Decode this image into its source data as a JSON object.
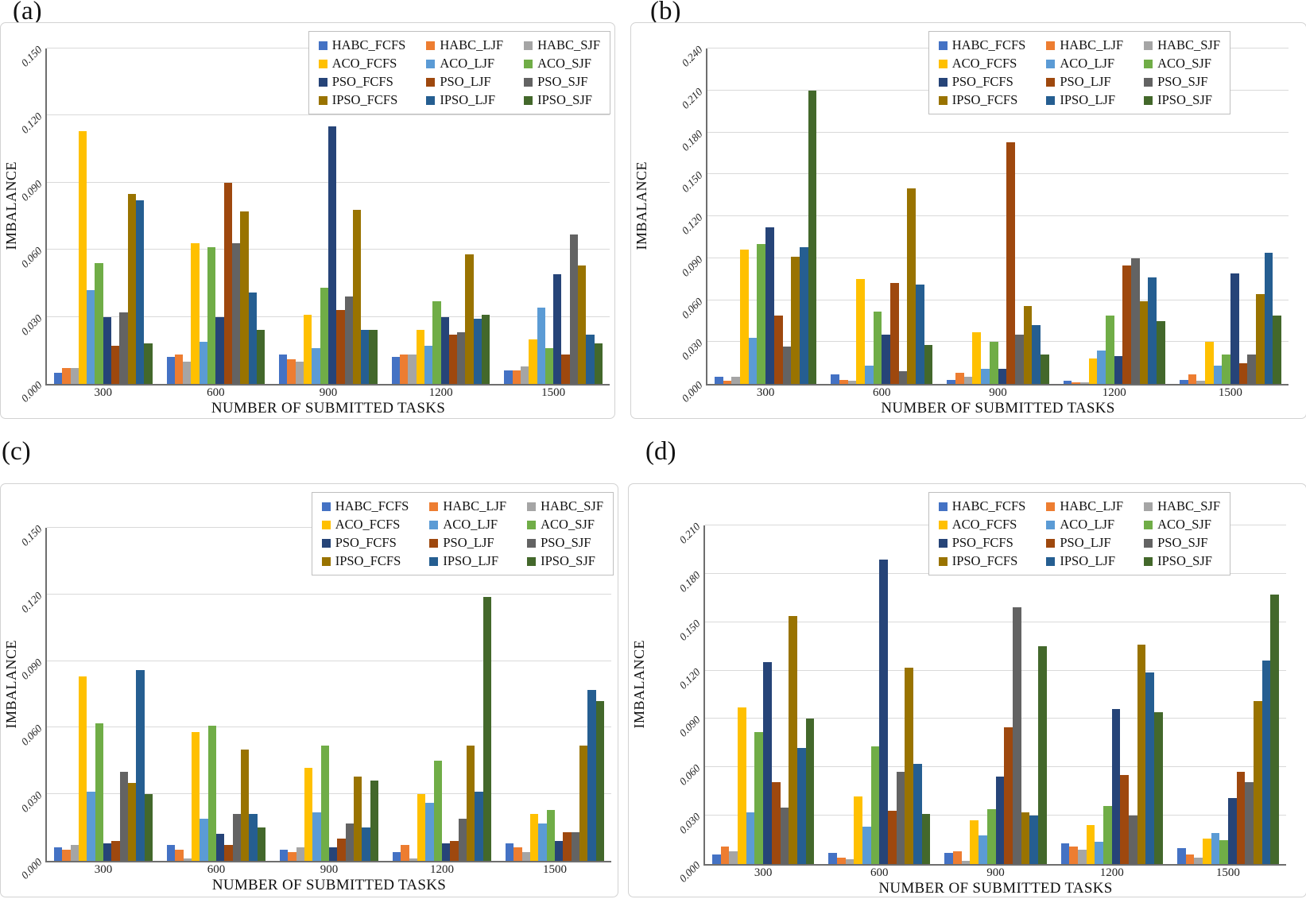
{
  "figure": {
    "xlabel": "NUMBER OF SUBMITTED TASKS",
    "ylabel": "IMBALANCE",
    "grid_color": "#d9d9d9",
    "axis_color": "#6e6e6e"
  },
  "chart_data": [
    {
      "type": "bar",
      "panel_label": "(a)",
      "xlabel": "NUMBER OF SUBMITTED TASKS",
      "ylabel": "IMBALANCE",
      "categories": [
        "300",
        "600",
        "900",
        "1200",
        "1500"
      ],
      "ylim": [
        0,
        0.15
      ],
      "ystep": 0.03,
      "grid": true,
      "legend_position": "top-right",
      "series": [
        {
          "name": "HABC_FCFS",
          "color": "#4472C4",
          "values": [
            0.005,
            0.012,
            0.013,
            0.012,
            0.006
          ]
        },
        {
          "name": "HABC_LJF",
          "color": "#ED7D31",
          "values": [
            0.007,
            0.013,
            0.011,
            0.013,
            0.006
          ]
        },
        {
          "name": "HABC_SJF",
          "color": "#A5A5A5",
          "values": [
            0.007,
            0.01,
            0.01,
            0.013,
            0.008
          ]
        },
        {
          "name": "ACO_FCFS",
          "color": "#FFC000",
          "values": [
            0.113,
            0.063,
            0.031,
            0.024,
            0.02
          ]
        },
        {
          "name": "ACO_LJF",
          "color": "#5B9BD5",
          "values": [
            0.042,
            0.019,
            0.016,
            0.017,
            0.034
          ]
        },
        {
          "name": "ACO_SJF",
          "color": "#70AD47",
          "values": [
            0.054,
            0.061,
            0.043,
            0.037,
            0.016
          ]
        },
        {
          "name": "PSO_FCFS",
          "color": "#264478",
          "values": [
            0.03,
            0.03,
            0.115,
            0.03,
            0.049
          ]
        },
        {
          "name": "PSO_LJF",
          "color": "#9E480E",
          "values": [
            0.017,
            0.09,
            0.033,
            0.022,
            0.013
          ]
        },
        {
          "name": "PSO_SJF",
          "color": "#636363",
          "values": [
            0.032,
            0.063,
            0.039,
            0.023,
            0.067
          ]
        },
        {
          "name": "IPSO_FCFS",
          "color": "#997300",
          "values": [
            0.085,
            0.077,
            0.078,
            0.058,
            0.053
          ]
        },
        {
          "name": "IPSO_LJF",
          "color": "#255E91",
          "values": [
            0.082,
            0.041,
            0.024,
            0.029,
            0.022
          ]
        },
        {
          "name": "IPSO_SJF",
          "color": "#43682B",
          "values": [
            0.018,
            0.024,
            0.024,
            0.031,
            0.018
          ]
        }
      ]
    },
    {
      "type": "bar",
      "panel_label": "(b)",
      "xlabel": "NUMBER OF SUBMITTED TASKS",
      "ylabel": "IMBALANCE",
      "categories": [
        "300",
        "600",
        "900",
        "1200",
        "1500"
      ],
      "ylim": [
        0,
        0.24
      ],
      "ystep": 0.03,
      "grid": true,
      "legend_position": "top-right-inset",
      "series": [
        {
          "name": "HABC_FCFS",
          "color": "#4472C4",
          "values": [
            0.005,
            0.007,
            0.003,
            0.002,
            0.003
          ]
        },
        {
          "name": "HABC_LJF",
          "color": "#ED7D31",
          "values": [
            0.002,
            0.003,
            0.008,
            0.001,
            0.007
          ]
        },
        {
          "name": "HABC_SJF",
          "color": "#A5A5A5",
          "values": [
            0.005,
            0.002,
            0.005,
            0.001,
            0.002
          ]
        },
        {
          "name": "ACO_FCFS",
          "color": "#FFC000",
          "values": [
            0.096,
            0.075,
            0.037,
            0.018,
            0.03
          ]
        },
        {
          "name": "ACO_LJF",
          "color": "#5B9BD5",
          "values": [
            0.033,
            0.013,
            0.011,
            0.024,
            0.013
          ]
        },
        {
          "name": "ACO_SJF",
          "color": "#70AD47",
          "values": [
            0.1,
            0.052,
            0.03,
            0.049,
            0.021
          ]
        },
        {
          "name": "PSO_FCFS",
          "color": "#264478",
          "values": [
            0.112,
            0.035,
            0.011,
            0.02,
            0.079
          ]
        },
        {
          "name": "PSO_LJF",
          "color": "#9E480E",
          "values": [
            0.049,
            0.072,
            0.173,
            0.085,
            0.015
          ]
        },
        {
          "name": "PSO_SJF",
          "color": "#636363",
          "values": [
            0.027,
            0.009,
            0.035,
            0.09,
            0.021
          ]
        },
        {
          "name": "IPSO_FCFS",
          "color": "#997300",
          "values": [
            0.091,
            0.14,
            0.056,
            0.059,
            0.064
          ]
        },
        {
          "name": "IPSO_LJF",
          "color": "#255E91",
          "values": [
            0.098,
            0.071,
            0.042,
            0.076,
            0.094
          ]
        },
        {
          "name": "IPSO_SJF",
          "color": "#43682B",
          "values": [
            0.21,
            0.028,
            0.021,
            0.045,
            0.049
          ]
        }
      ]
    },
    {
      "type": "bar",
      "panel_label": "(c)",
      "xlabel": "NUMBER OF SUBMITTED TASKS",
      "ylabel": "IMBALANCE",
      "categories": [
        "300",
        "600",
        "900",
        "1200",
        "1500"
      ],
      "ylim": [
        0,
        0.15
      ],
      "ystep": 0.03,
      "grid": true,
      "legend_position": "top-right",
      "series": [
        {
          "name": "HABC_FCFS",
          "color": "#4472C4",
          "values": [
            0.006,
            0.007,
            0.005,
            0.004,
            0.008
          ]
        },
        {
          "name": "HABC_LJF",
          "color": "#ED7D31",
          "values": [
            0.005,
            0.005,
            0.004,
            0.007,
            0.006
          ]
        },
        {
          "name": "HABC_SJF",
          "color": "#A5A5A5",
          "values": [
            0.007,
            0.001,
            0.006,
            0.001,
            0.004
          ]
        },
        {
          "name": "ACO_FCFS",
          "color": "#FFC000",
          "values": [
            0.083,
            0.058,
            0.042,
            0.03,
            0.021
          ]
        },
        {
          "name": "ACO_LJF",
          "color": "#5B9BD5",
          "values": [
            0.031,
            0.019,
            0.022,
            0.026,
            0.017
          ]
        },
        {
          "name": "ACO_SJF",
          "color": "#70AD47",
          "values": [
            0.062,
            0.061,
            0.052,
            0.045,
            0.023
          ]
        },
        {
          "name": "PSO_FCFS",
          "color": "#264478",
          "values": [
            0.008,
            0.012,
            0.006,
            0.008,
            0.009
          ]
        },
        {
          "name": "PSO_LJF",
          "color": "#9E480E",
          "values": [
            0.009,
            0.007,
            0.01,
            0.009,
            0.013
          ]
        },
        {
          "name": "PSO_SJF",
          "color": "#636363",
          "values": [
            0.04,
            0.021,
            0.017,
            0.019,
            0.013
          ]
        },
        {
          "name": "IPSO_FCFS",
          "color": "#997300",
          "values": [
            0.035,
            0.05,
            0.038,
            0.052,
            0.052
          ]
        },
        {
          "name": "IPSO_LJF",
          "color": "#255E91",
          "values": [
            0.086,
            0.021,
            0.015,
            0.031,
            0.077
          ]
        },
        {
          "name": "IPSO_SJF",
          "color": "#43682B",
          "values": [
            0.03,
            0.015,
            0.036,
            0.119,
            0.072
          ]
        }
      ]
    },
    {
      "type": "bar",
      "panel_label": "(d)",
      "xlabel": "NUMBER OF SUBMITTED TASKS",
      "ylabel": "IMBALANCE",
      "categories": [
        "300",
        "600",
        "900",
        "1200",
        "1500"
      ],
      "ylim": [
        0,
        0.21
      ],
      "ystep": 0.03,
      "grid": true,
      "legend_position": "top-right-inset",
      "series": [
        {
          "name": "HABC_FCFS",
          "color": "#4472C4",
          "values": [
            0.006,
            0.007,
            0.007,
            0.013,
            0.01
          ]
        },
        {
          "name": "HABC_LJF",
          "color": "#ED7D31",
          "values": [
            0.011,
            0.004,
            0.008,
            0.011,
            0.006
          ]
        },
        {
          "name": "HABC_SJF",
          "color": "#A5A5A5",
          "values": [
            0.008,
            0.003,
            0.002,
            0.009,
            0.004
          ]
        },
        {
          "name": "ACO_FCFS",
          "color": "#FFC000",
          "values": [
            0.097,
            0.042,
            0.027,
            0.024,
            0.016
          ]
        },
        {
          "name": "ACO_LJF",
          "color": "#5B9BD5",
          "values": [
            0.032,
            0.023,
            0.018,
            0.014,
            0.019
          ]
        },
        {
          "name": "ACO_SJF",
          "color": "#70AD47",
          "values": [
            0.082,
            0.073,
            0.034,
            0.036,
            0.015
          ]
        },
        {
          "name": "PSO_FCFS",
          "color": "#264478",
          "values": [
            0.125,
            0.189,
            0.054,
            0.096,
            0.041
          ]
        },
        {
          "name": "PSO_LJF",
          "color": "#9E480E",
          "values": [
            0.051,
            0.033,
            0.085,
            0.055,
            0.057
          ]
        },
        {
          "name": "PSO_SJF",
          "color": "#636363",
          "values": [
            0.035,
            0.057,
            0.159,
            0.03,
            0.051
          ]
        },
        {
          "name": "IPSO_FCFS",
          "color": "#997300",
          "values": [
            0.154,
            0.122,
            0.032,
            0.136,
            0.101
          ]
        },
        {
          "name": "IPSO_LJF",
          "color": "#255E91",
          "values": [
            0.072,
            0.062,
            0.03,
            0.119,
            0.126
          ]
        },
        {
          "name": "IPSO_SJF",
          "color": "#43682B",
          "values": [
            0.09,
            0.031,
            0.135,
            0.094,
            0.167
          ]
        }
      ]
    }
  ]
}
